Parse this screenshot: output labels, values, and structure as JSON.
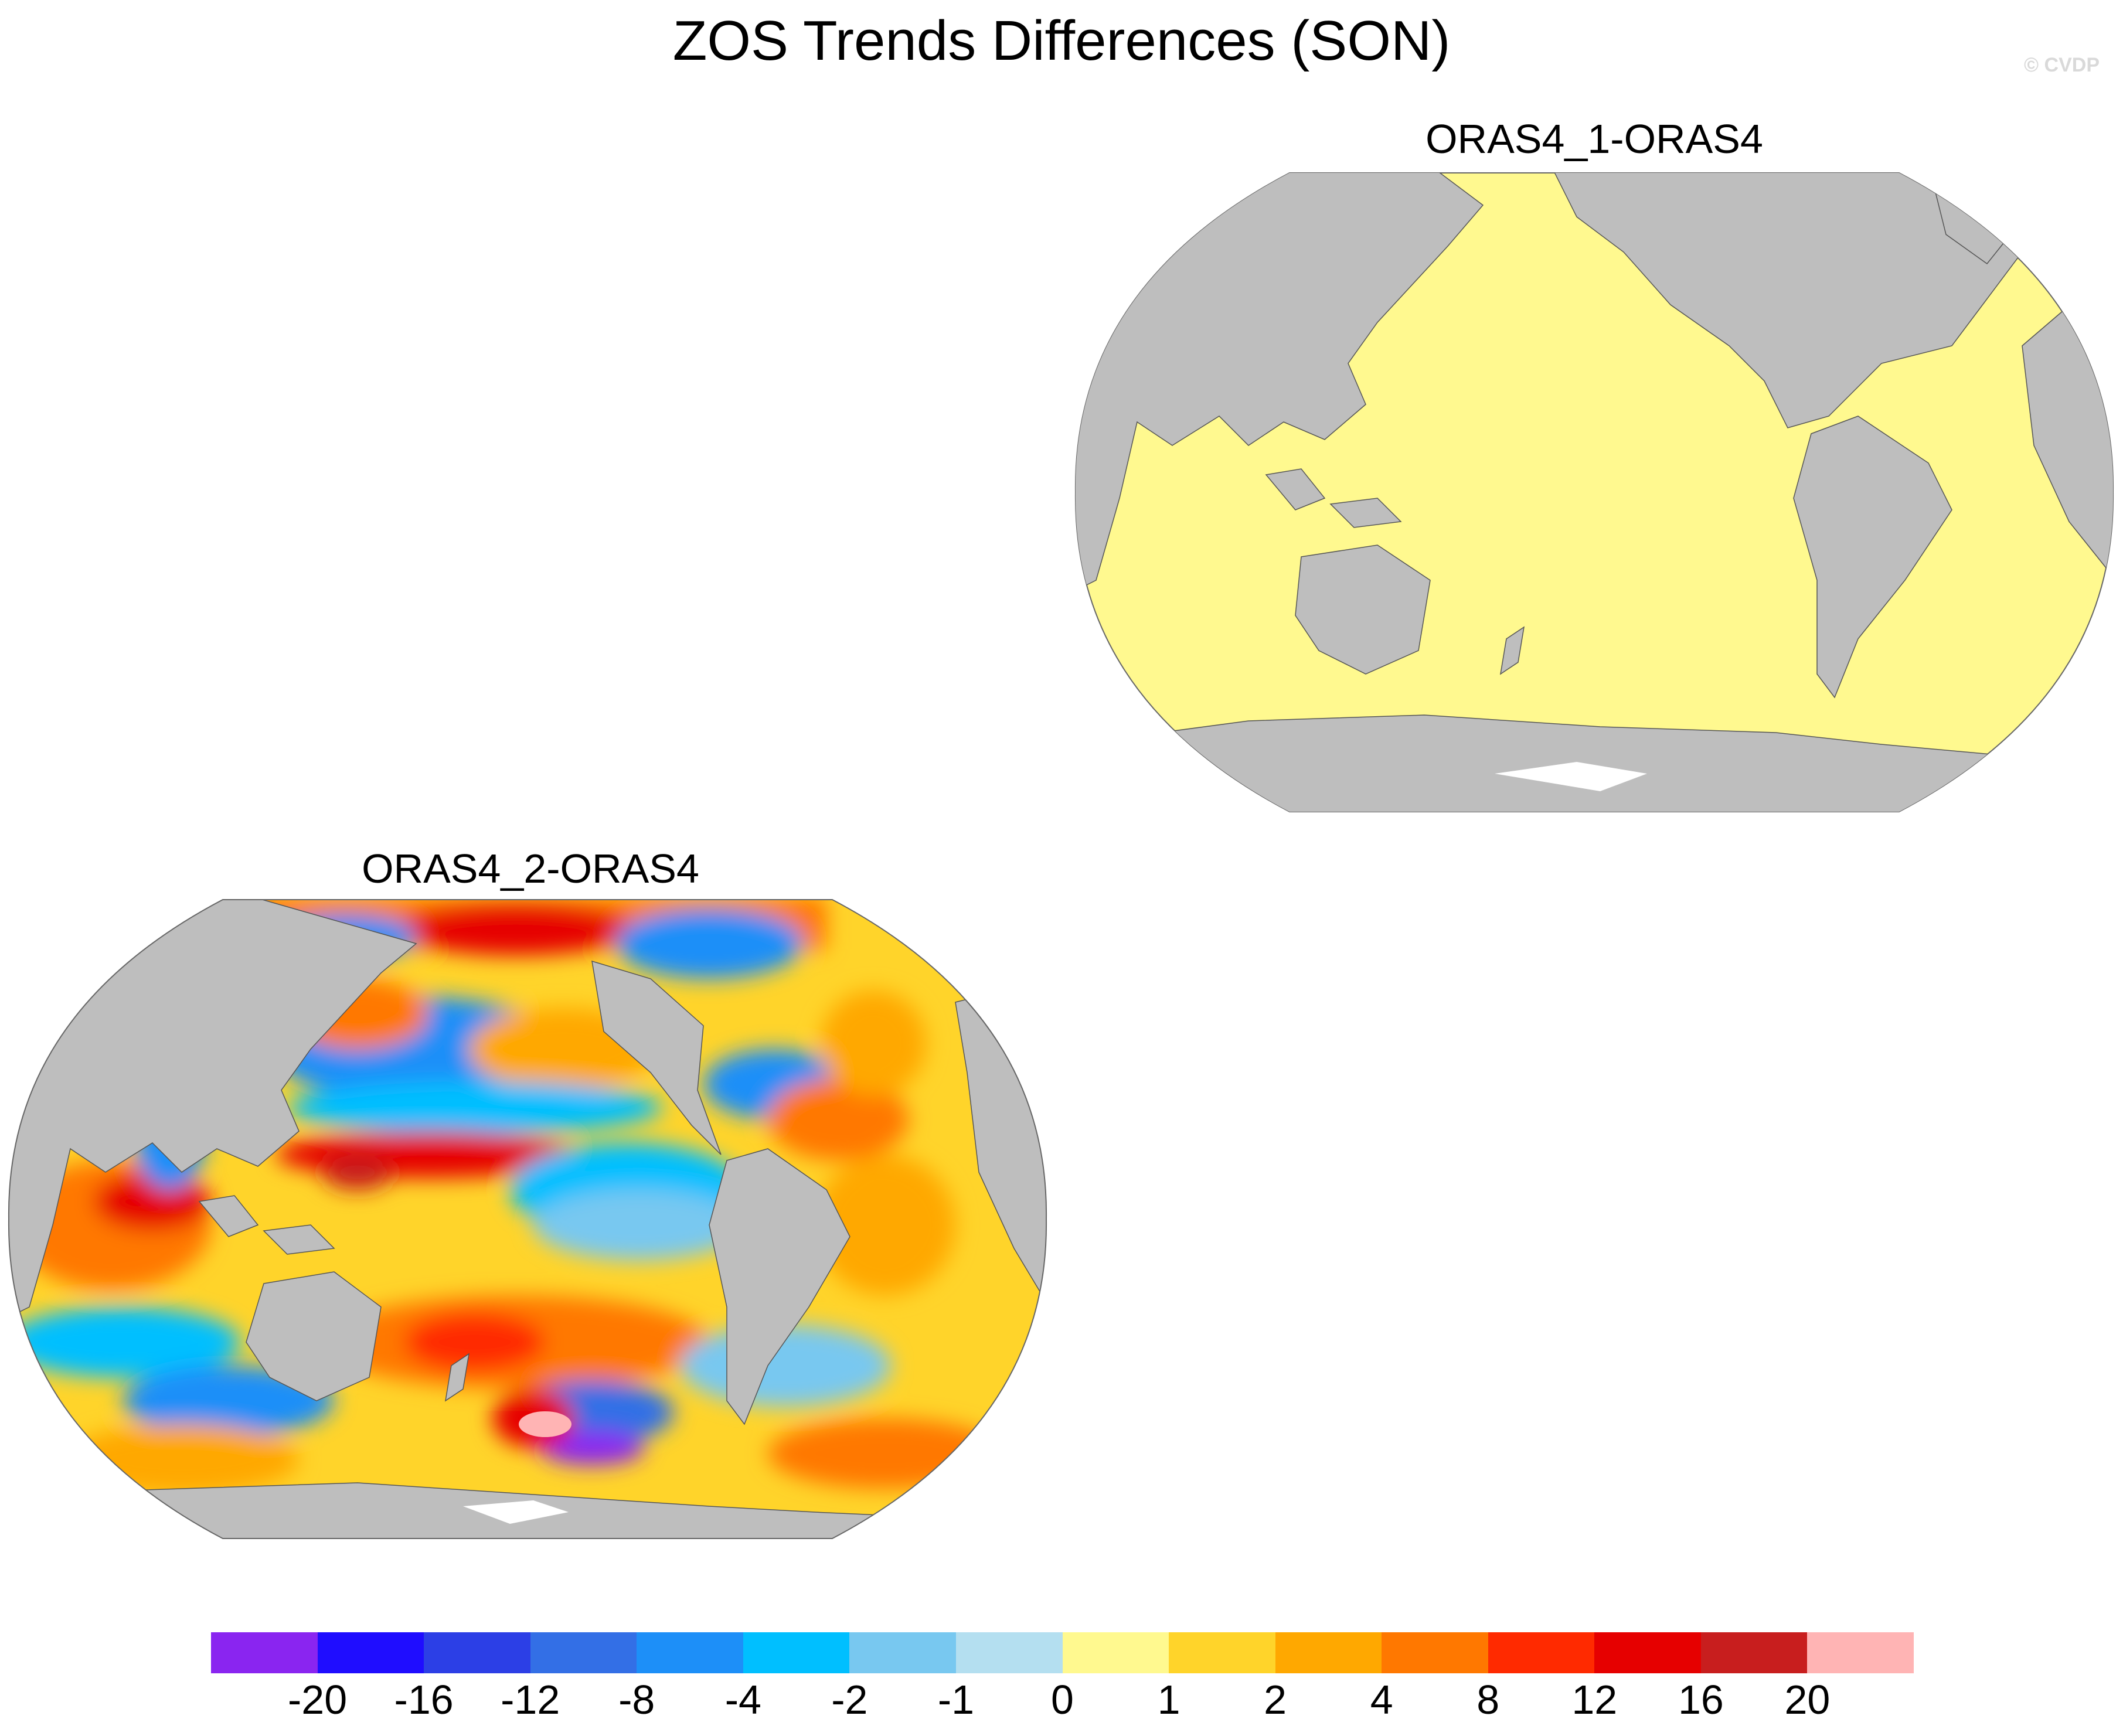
{
  "title": "ZOS Trends Differences (SON)",
  "watermark": "© CVDP",
  "panels": [
    {
      "title": "ORAS4_1-ORAS4",
      "field": "uniform",
      "dominant_level": "0 to 1",
      "land_color": "#bebebe"
    },
    {
      "title": "ORAS4_2-ORAS4",
      "field": "spatially-varying",
      "land_color": "#bebebe"
    }
  ],
  "colorbar": {
    "colors": [
      "#8a25f0",
      "#1f0dff",
      "#2c3fe6",
      "#336fe6",
      "#1d8ff8",
      "#00bfff",
      "#78c8f0",
      "#b4dff0",
      "#fff98f",
      "#ffd42a",
      "#ffa800",
      "#ff7800",
      "#ff2a00",
      "#e60000",
      "#c81e1e",
      "#ffb4b4"
    ],
    "labels": [
      "-20",
      "-16",
      "-12",
      "-8",
      "-4",
      "-2",
      "-1",
      "0",
      "1",
      "2",
      "4",
      "8",
      "12",
      "16",
      "20"
    ]
  }
}
